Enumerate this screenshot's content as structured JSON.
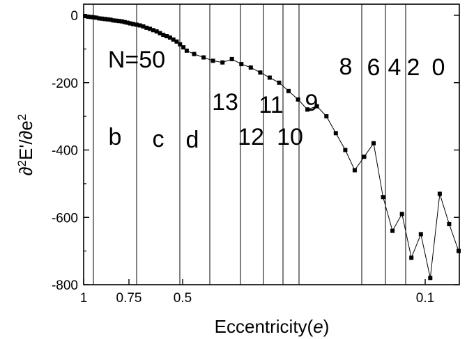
{
  "chart_data": {
    "type": "line",
    "title": "",
    "xlabel": "Eccentricity(e)",
    "xlabel_text": "Eccentricity(",
    "xlabel_var": "e",
    "xlabel_close": ")",
    "ylabel": "∂2E'/∂e2",
    "ylabel_parts": {
      "d1": "∂",
      "sup1": "2",
      "mid": "E'/∂e",
      "sup2": "2"
    },
    "x_axis": {
      "scale": "reversed",
      "labels": [
        "1",
        "0.75",
        "0.5",
        "0.1"
      ],
      "label_values": [
        1,
        0.75,
        0.5,
        0.1
      ]
    },
    "y_axis": {
      "ylim": [
        -800,
        20
      ],
      "ticks": [
        0,
        -200,
        -400,
        -600,
        -800
      ],
      "tick_labels": [
        "0",
        "-200",
        "-400",
        "-600",
        "-800"
      ]
    },
    "grid": false,
    "series": [
      {
        "marker": "square",
        "x": [
          1.0,
          0.985,
          0.97,
          0.955,
          0.94,
          0.925,
          0.91,
          0.895,
          0.88,
          0.865,
          0.85,
          0.835,
          0.82,
          0.805,
          0.79,
          0.775,
          0.76,
          0.745,
          0.73,
          0.715,
          0.7,
          0.685,
          0.67,
          0.655,
          0.64,
          0.625,
          0.61,
          0.595,
          0.58,
          0.565,
          0.55,
          0.535,
          0.52,
          0.505,
          0.49,
          0.475,
          0.46,
          0.445,
          0.43,
          0.415,
          0.4,
          0.385,
          0.37,
          0.355,
          0.34,
          0.325,
          0.31,
          0.295,
          0.28,
          0.265,
          0.25,
          0.235,
          0.22,
          0.205,
          0.19,
          0.175,
          0.16,
          0.145,
          0.13,
          0.115,
          0.1,
          0.085,
          0.07
        ],
        "y": [
          -2,
          -4,
          -5,
          -6,
          -7,
          -9,
          -10,
          -11,
          -12,
          -13,
          -15,
          -16,
          -17,
          -18,
          -20,
          -22,
          -24,
          -26,
          -28,
          -30,
          -33,
          -37,
          -40,
          -44,
          -48,
          -53,
          -58,
          -62,
          -66,
          -72,
          -78,
          -86,
          -95,
          -105,
          -115,
          -125,
          -135,
          -140,
          -130,
          -145,
          -155,
          -170,
          -185,
          -200,
          -225,
          -250,
          -280,
          -270,
          -300,
          -350,
          -400,
          -460,
          -420,
          -380,
          -540,
          -640,
          -590,
          -720,
          -650,
          -780,
          -530,
          -620,
          -700
        ]
      }
    ],
    "vertical_lines_at": [
      0.985,
      0.77,
      0.55,
      0.445,
      0.3,
      0.19,
      0.135,
      0.085,
      0.035,
      0.23,
      0.17,
      0.115
    ],
    "annotations": [
      {
        "text": "N=50",
        "x": 0.9,
        "y": -140
      },
      {
        "text": "b",
        "x": 0.87,
        "y": -370
      },
      {
        "text": "c",
        "x": 0.66,
        "y": -380
      },
      {
        "text": "d",
        "x": 0.47,
        "y": -380
      },
      {
        "text": "13",
        "x": 0.37,
        "y": -260
      },
      {
        "text": "12",
        "x": 0.245,
        "y": -370
      },
      {
        "text": "11",
        "x": 0.21,
        "y": -270
      },
      {
        "text": "10",
        "x": 0.14,
        "y": -370
      },
      {
        "text": "9",
        "x": 0.1,
        "y": -270
      },
      {
        "text": "8",
        "x": -0.04,
        "y": -150
      },
      {
        "text": "6",
        "x": -0.12,
        "y": -155
      },
      {
        "text": "4",
        "x": -0.17,
        "y": -155
      },
      {
        "text": "2",
        "x": -0.22,
        "y": -155
      },
      {
        "text": "0",
        "x": -0.29,
        "y": -155
      }
    ]
  }
}
